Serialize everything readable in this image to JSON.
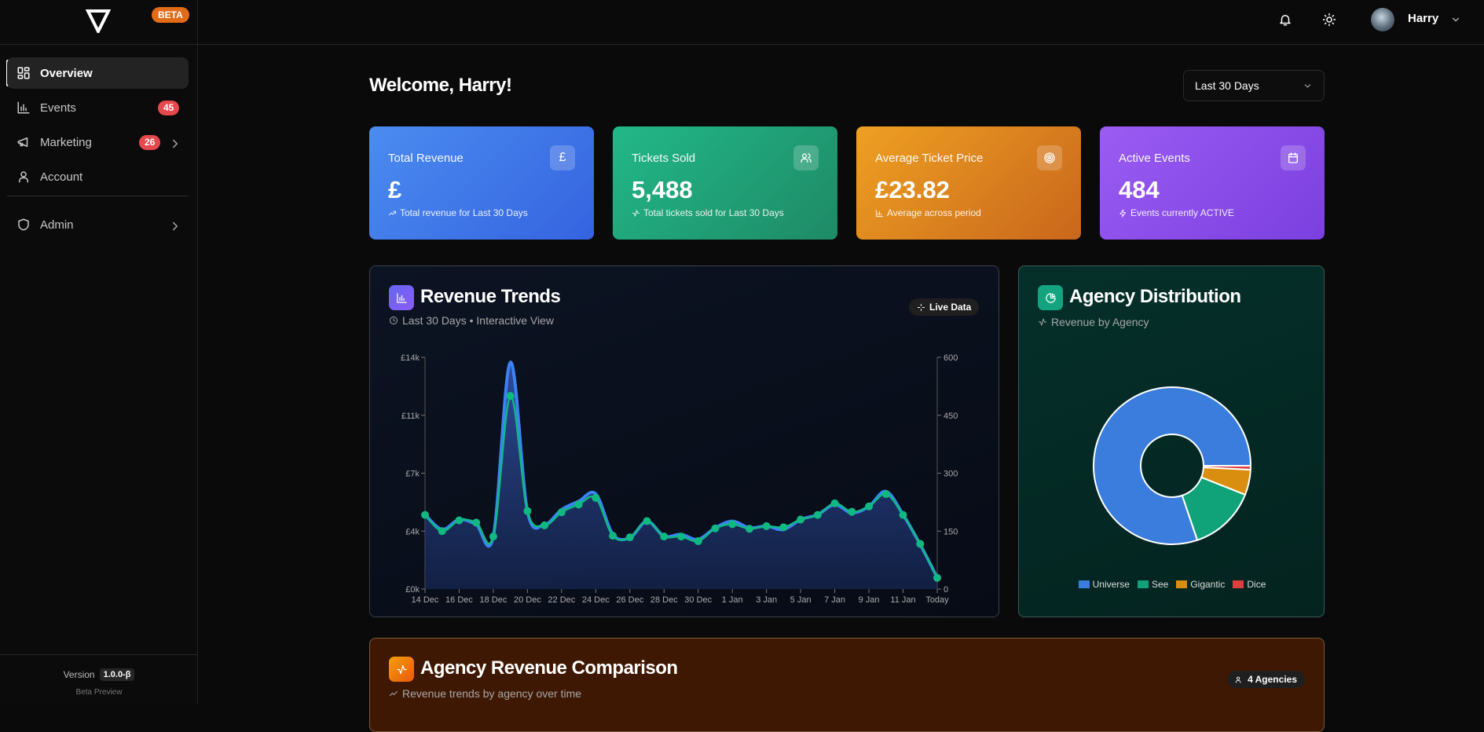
{
  "brand": {
    "badge": "BETA"
  },
  "sidebar": {
    "items": [
      {
        "label": "Overview",
        "icon": "dashboard-icon",
        "active": true
      },
      {
        "label": "Events",
        "icon": "bar-chart-icon",
        "badge": "45"
      },
      {
        "label": "Marketing",
        "icon": "megaphone-icon",
        "badge": "26",
        "has_submenu": true
      },
      {
        "label": "Account",
        "icon": "user-icon"
      },
      {
        "label": "Admin",
        "icon": "shield-icon",
        "has_submenu": true
      }
    ],
    "footer": {
      "version_label": "Version",
      "version": "1.0.0-β",
      "note": "Beta Preview"
    }
  },
  "header": {
    "user_name": "Harry"
  },
  "main": {
    "welcome": "Welcome, Harry!",
    "period_select": "Last 30 Days",
    "cards": [
      {
        "title": "Total Revenue",
        "value": "£",
        "subtitle": "Total revenue for Last 30 Days",
        "icon": "pound-icon",
        "color_from": "#4b8cf0",
        "color_to": "#3563e0"
      },
      {
        "title": "Tickets Sold",
        "value": "5,488",
        "subtitle": "Total tickets sold for Last 30 Days",
        "icon": "users-icon",
        "color_from": "#22b887",
        "color_to": "#1e8a66"
      },
      {
        "title": "Average Ticket Price",
        "value": "£23.82",
        "subtitle": "Average across period",
        "icon": "target-icon",
        "color_from": "#eea022",
        "color_to": "#c9661c"
      },
      {
        "title": "Active Events",
        "value": "484",
        "subtitle": "Events currently ACTIVE",
        "icon": "calendar-icon",
        "color_from": "#9a5cf2",
        "color_to": "#7b3fe0"
      }
    ],
    "revenue_panel": {
      "title": "Revenue Trends",
      "subtitle": "Last 30 Days • Interactive View",
      "pill": "Live Data"
    },
    "agency_panel": {
      "title": "Agency Distribution",
      "subtitle": "Revenue by Agency"
    },
    "comparison_panel": {
      "title": "Agency Revenue Comparison",
      "subtitle": "Revenue trends by agency over time",
      "pill": "4 Agencies"
    }
  },
  "chart_data": [
    {
      "type": "line",
      "x": [
        "14 Dec",
        "15 Dec",
        "16 Dec",
        "17 Dec",
        "18 Dec",
        "19 Dec",
        "20 Dec",
        "21 Dec",
        "22 Dec",
        "23 Dec",
        "24 Dec",
        "25 Dec",
        "26 Dec",
        "27 Dec",
        "28 Dec",
        "29 Dec",
        "30 Dec",
        "31 Dec",
        "1 Jan",
        "2 Jan",
        "3 Jan",
        "4 Jan",
        "5 Jan",
        "6 Jan",
        "7 Jan",
        "8 Jan",
        "9 Jan",
        "10 Jan",
        "11 Jan",
        "12 Jan",
        "Today"
      ],
      "x_tick_labels": [
        "14 Dec",
        "16 Dec",
        "18 Dec",
        "20 Dec",
        "22 Dec",
        "24 Dec",
        "26 Dec",
        "28 Dec",
        "30 Dec",
        "1 Jan",
        "3 Jan",
        "5 Jan",
        "7 Jan",
        "9 Jan",
        "11 Jan",
        "Today"
      ],
      "series": [
        {
          "axis": "left",
          "color": "#3b82f6",
          "fill": true,
          "values": [
            4500,
            3600,
            4200,
            3900,
            3200,
            13700,
            4700,
            3900,
            4800,
            5300,
            5750,
            3300,
            3100,
            4100,
            3200,
            3300,
            3000,
            3700,
            4100,
            3700,
            3800,
            3600,
            4200,
            4500,
            5100,
            4600,
            5000,
            5900,
            4500,
            2700,
            700
          ]
        },
        {
          "axis": "right",
          "color": "#10b981",
          "markers": true,
          "values": [
            192,
            150,
            178,
            172,
            136,
            500,
            202,
            165,
            199,
            219,
            236,
            138,
            134,
            176,
            136,
            136,
            124,
            157,
            168,
            156,
            163,
            160,
            180,
            192,
            222,
            200,
            214,
            246,
            192,
            117,
            29
          ]
        }
      ],
      "y_left": {
        "range": [
          0,
          14000
        ],
        "ticks": [
          0,
          3500,
          7000,
          10500,
          14000
        ],
        "tick_labels": [
          "£0k",
          "£4k",
          "£7k",
          "£11k",
          "£14k"
        ]
      },
      "y_right": {
        "range": [
          0,
          600
        ],
        "ticks": [
          0,
          150,
          300,
          450,
          600
        ],
        "tick_labels": [
          "0",
          "150",
          "300",
          "450",
          "600"
        ]
      },
      "grid": false
    },
    {
      "type": "pie",
      "donut": true,
      "categories": [
        "Universe",
        "See",
        "Gigantic",
        "Dice"
      ],
      "values": [
        80.2,
        13.8,
        5.2,
        0.8
      ],
      "colors": [
        "#3b7ddd",
        "#10a37a",
        "#d98e0f",
        "#dc3f3f"
      ],
      "legend": "bottom"
    }
  ]
}
